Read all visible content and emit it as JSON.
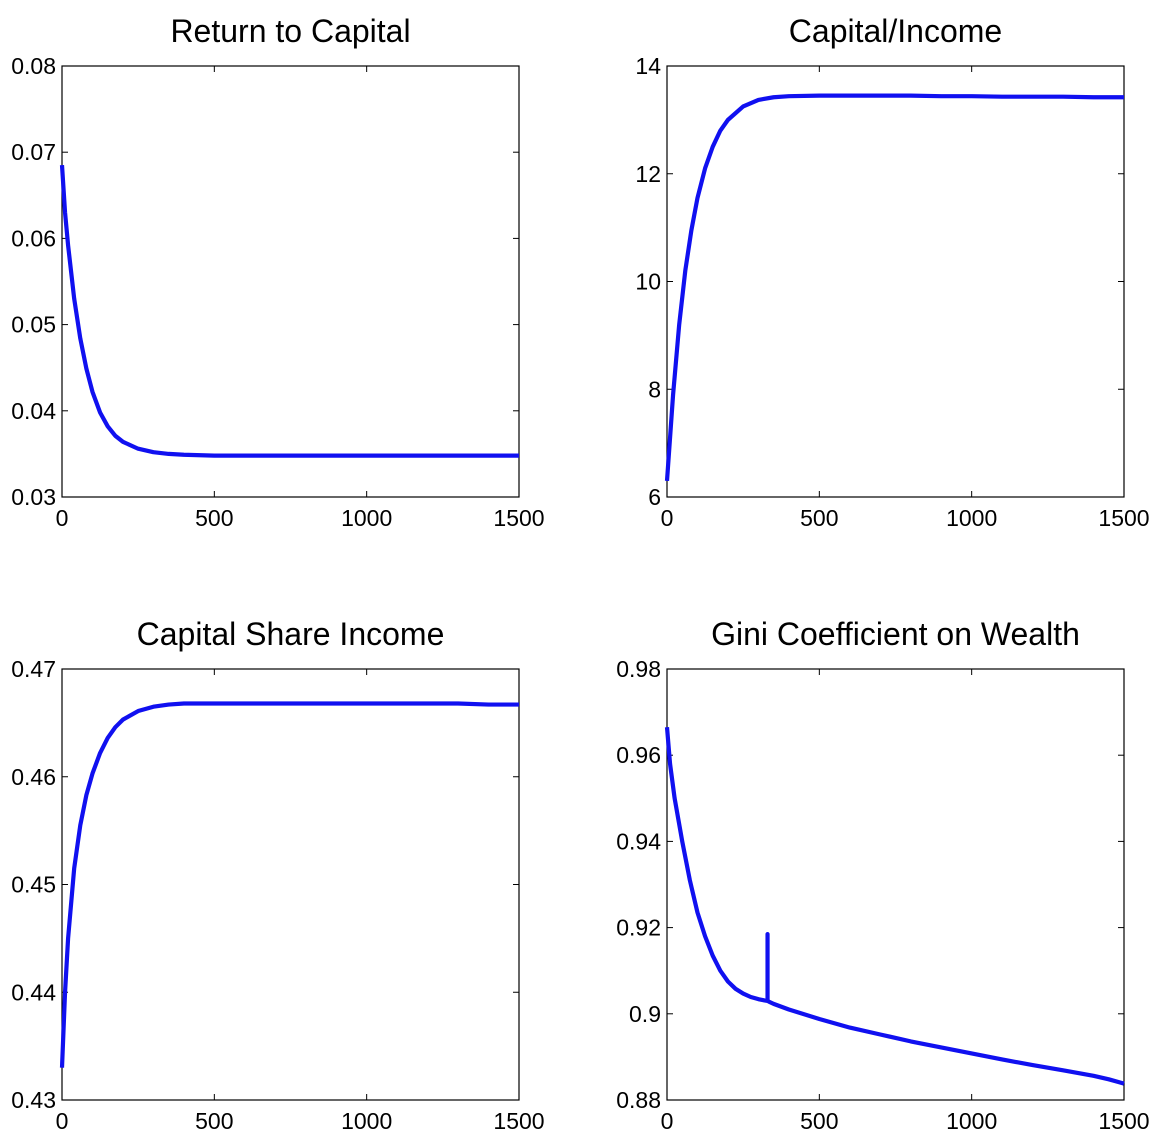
{
  "chart_data": [
    {
      "type": "line",
      "title": "Return to Capital",
      "xlabel": "",
      "ylabel": "",
      "xlim": [
        0,
        1500
      ],
      "ylim": [
        0.03,
        0.08
      ],
      "xticks": [
        "0",
        "500",
        "1000",
        "1500"
      ],
      "yticks": [
        "0.03",
        "0.04",
        "0.05",
        "0.06",
        "0.07",
        "0.08"
      ],
      "grid": false,
      "color": "#1010f0",
      "series": [
        {
          "x": [
            0,
            10,
            20,
            40,
            60,
            80,
            100,
            125,
            150,
            175,
            200,
            250,
            300,
            350,
            400,
            500,
            600,
            700,
            800,
            900,
            1000,
            1100,
            1200,
            1300,
            1400,
            1500
          ],
          "y": [
            0.0685,
            0.063,
            0.0592,
            0.053,
            0.0484,
            0.0449,
            0.0422,
            0.0398,
            0.0382,
            0.0371,
            0.0364,
            0.0356,
            0.0352,
            0.035,
            0.0349,
            0.0348,
            0.0348,
            0.0348,
            0.0348,
            0.0348,
            0.0348,
            0.0348,
            0.0348,
            0.0348,
            0.0348,
            0.0348
          ]
        }
      ]
    },
    {
      "type": "line",
      "title": "Capital/Income",
      "xlabel": "",
      "ylabel": "",
      "xlim": [
        0,
        1500
      ],
      "ylim": [
        6,
        14
      ],
      "xticks": [
        "0",
        "500",
        "1000",
        "1500"
      ],
      "yticks": [
        "6",
        "8",
        "10",
        "12",
        "14"
      ],
      "grid": false,
      "color": "#1010f0",
      "series": [
        {
          "x": [
            0,
            10,
            20,
            40,
            60,
            80,
            100,
            125,
            150,
            175,
            200,
            250,
            300,
            350,
            400,
            500,
            600,
            700,
            800,
            900,
            1000,
            1100,
            1200,
            1300,
            1400,
            1500
          ],
          "y": [
            6.3,
            7.1,
            7.9,
            9.2,
            10.2,
            10.95,
            11.55,
            12.1,
            12.5,
            12.8,
            13.0,
            13.25,
            13.37,
            13.42,
            13.44,
            13.45,
            13.45,
            13.45,
            13.45,
            13.44,
            13.44,
            13.43,
            13.43,
            13.43,
            13.42,
            13.42
          ]
        }
      ]
    },
    {
      "type": "line",
      "title": "Capital Share Income",
      "xlabel": "",
      "ylabel": "",
      "xlim": [
        0,
        1500
      ],
      "ylim": [
        0.43,
        0.47
      ],
      "xticks": [
        "0",
        "500",
        "1000",
        "1500"
      ],
      "yticks": [
        "0.43",
        "0.44",
        "0.45",
        "0.46",
        "0.47"
      ],
      "grid": false,
      "color": "#1010f0",
      "series": [
        {
          "x": [
            0,
            10,
            20,
            40,
            60,
            80,
            100,
            125,
            150,
            175,
            200,
            250,
            300,
            350,
            400,
            500,
            600,
            700,
            800,
            900,
            1000,
            1100,
            1200,
            1300,
            1400,
            1500
          ],
          "y": [
            0.433,
            0.44,
            0.445,
            0.4515,
            0.4555,
            0.4583,
            0.4603,
            0.4622,
            0.4636,
            0.4646,
            0.4653,
            0.4661,
            0.4665,
            0.4667,
            0.4668,
            0.4668,
            0.4668,
            0.4668,
            0.4668,
            0.4668,
            0.4668,
            0.4668,
            0.4668,
            0.4668,
            0.4667,
            0.4667
          ]
        }
      ]
    },
    {
      "type": "line",
      "title": "Gini Coefficient on Wealth",
      "xlabel": "",
      "ylabel": "",
      "xlim": [
        0,
        1500
      ],
      "ylim": [
        0.88,
        0.98
      ],
      "xticks": [
        "0",
        "500",
        "1000",
        "1500"
      ],
      "yticks": [
        "0.88",
        "0.9",
        "0.92",
        "0.94",
        "0.96",
        "0.98"
      ],
      "grid": false,
      "color": "#1010f0",
      "series": [
        {
          "x": [
            0,
            10,
            25,
            50,
            75,
            100,
            125,
            150,
            175,
            200,
            225,
            250,
            275,
            300,
            320,
            330,
            330,
            330,
            335,
            350,
            400,
            500,
            600,
            700,
            800,
            900,
            1000,
            1100,
            1200,
            1300,
            1400,
            1450,
            1480,
            1500
          ],
          "y": [
            0.9665,
            0.958,
            0.95,
            0.94,
            0.931,
            0.9235,
            0.918,
            0.9135,
            0.91,
            0.9075,
            0.9058,
            0.9047,
            0.9039,
            0.9034,
            0.9031,
            0.903,
            0.9185,
            0.903,
            0.9028,
            0.9023,
            0.901,
            0.8988,
            0.8968,
            0.8952,
            0.8936,
            0.8922,
            0.8908,
            0.8894,
            0.8881,
            0.8869,
            0.8856,
            0.8848,
            0.8842,
            0.8838
          ]
        }
      ]
    }
  ]
}
